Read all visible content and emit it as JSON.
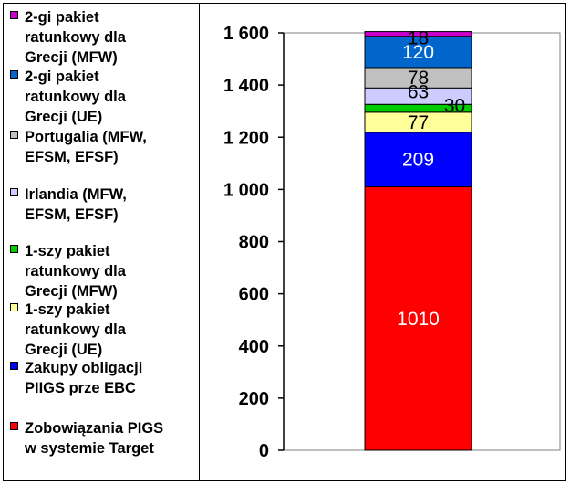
{
  "chart_data": {
    "type": "bar",
    "stacked": true,
    "title": "",
    "xlabel": "",
    "ylabel": "",
    "ylim": [
      0,
      1600
    ],
    "yticks": [
      0,
      200,
      400,
      600,
      800,
      1000,
      1200,
      1400,
      1600
    ],
    "ytick_labels": [
      "0",
      "200",
      "400",
      "600",
      "800",
      "1 000",
      "1 200",
      "1 400",
      "1 600"
    ],
    "grid": false,
    "legend_position": "left",
    "series": [
      {
        "name": "Zobowiązania PIGS w systemie Target",
        "value": 1010,
        "label": "1010",
        "color": "#ff0000",
        "label_color": "#ffffff"
      },
      {
        "name": "Zakupy obligacji PIIGS prze EBC",
        "value": 209,
        "label": "209",
        "color": "#0000ff",
        "label_color": "#ffffff"
      },
      {
        "name": "1-szy pakiet ratunkowy dla Grecji (UE)",
        "value": 77,
        "label": "77",
        "color": "#ffff99",
        "label_color": "#000000"
      },
      {
        "name": "1-szy pakiet ratunkowy dla Grecji (MFW)",
        "value": 30,
        "label": "30",
        "color": "#00cc00",
        "label_color": "#000000"
      },
      {
        "name": "Irlandia (MFW, EFSM, EFSF)",
        "value": 63,
        "label": "63",
        "color": "#ccccff",
        "label_color": "#000000"
      },
      {
        "name": "Portugalia (MFW, EFSM, EFSF)",
        "value": 78,
        "label": "78",
        "color": "#c0c0c0",
        "label_color": "#000000"
      },
      {
        "name": "2-gi pakiet ratunkowy dla Grecji (UE)",
        "value": 120,
        "label": "120",
        "color": "#0066cc",
        "label_color": "#ffffff"
      },
      {
        "name": "2-gi pakiet ratunkowy dla Grecji (MFW)",
        "value": 18,
        "label": "18",
        "color": "#cc00cc",
        "label_color": "#000000"
      }
    ]
  },
  "legend": [
    {
      "text": "2-gi pakiet\nratunkowy dla\nGrecji (MFW)",
      "color": "#cc00cc"
    },
    {
      "text": "2-gi pakiet\nratunkowy dla\nGrecji (UE)",
      "color": "#0066cc"
    },
    {
      "text": "Portugalia (MFW,\nEFSM, EFSF)",
      "color": "#c0c0c0"
    },
    {
      "text": "Irlandia (MFW,\nEFSM, EFSF)",
      "color": "#ccccff"
    },
    {
      "text": "1-szy pakiet\nratunkowy dla\nGrecji (MFW)",
      "color": "#00cc00"
    },
    {
      "text": "1-szy pakiet\nratunkowy dla\nGrecji (UE)",
      "color": "#ffff99"
    },
    {
      "text": "Zakupy obligacji\nPIIGS prze EBC",
      "color": "#0000ff"
    },
    {
      "text": "Zobowiązania PIGS\nw systemie Target",
      "color": "#ff0000"
    }
  ]
}
